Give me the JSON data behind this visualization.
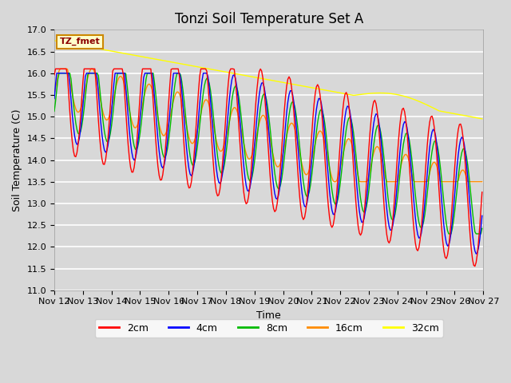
{
  "title": "Tonzi Soil Temperature Set A",
  "xlabel": "Time",
  "ylabel": "Soil Temperature (C)",
  "ylim": [
    11.0,
    17.0
  ],
  "yticks": [
    11.0,
    11.5,
    12.0,
    12.5,
    13.0,
    13.5,
    14.0,
    14.5,
    15.0,
    15.5,
    16.0,
    16.5,
    17.0
  ],
  "xtick_labels": [
    "Nov 12",
    "Nov 13",
    "Nov 14",
    "Nov 15",
    "Nov 16",
    "Nov 17",
    "Nov 18",
    "Nov 19",
    "Nov 20",
    "Nov 21",
    "Nov 22",
    "Nov 23",
    "Nov 24",
    "Nov 25",
    "Nov 26",
    "Nov 27"
  ],
  "legend_label": "TZ_fmet",
  "series_colors": {
    "2cm": "#ff0000",
    "4cm": "#0000ff",
    "8cm": "#00bb00",
    "16cm": "#ff8c00",
    "32cm": "#ffff00"
  },
  "n_days": 15,
  "pts_per_day": 24,
  "fig_bg": "#d8d8d8",
  "plot_bg": "#d8d8d8",
  "grid_color": "#ffffff",
  "title_fontsize": 12,
  "axis_label_fontsize": 9,
  "tick_fontsize": 8
}
